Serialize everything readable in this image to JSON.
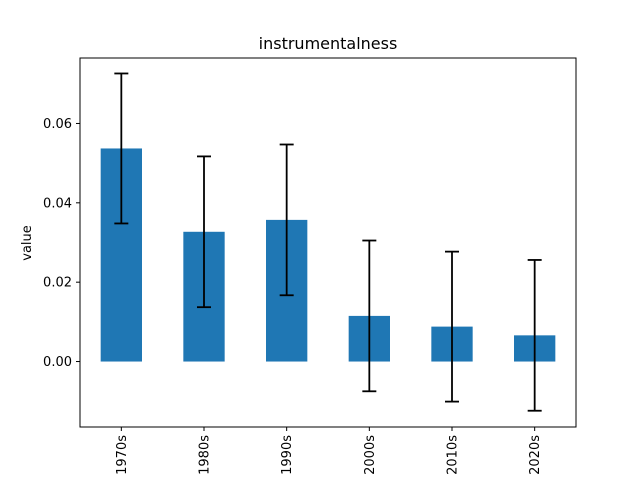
{
  "chart_data": {
    "type": "bar",
    "title": "instrumentalness",
    "xlabel": "",
    "ylabel": "value",
    "categories": [
      "1970s",
      "1980s",
      "1990s",
      "2000s",
      "2010s",
      "2020s"
    ],
    "values": [
      0.0537,
      0.0327,
      0.0357,
      0.0115,
      0.0088,
      0.0066
    ],
    "error": [
      0.0189,
      0.019,
      0.019,
      0.019,
      0.0189,
      0.019
    ],
    "ylim": [
      -0.0165,
      0.0765
    ],
    "yticks": [
      0.0,
      0.02,
      0.04,
      0.06
    ],
    "ytick_labels": [
      "0.00",
      "0.02",
      "0.04",
      "0.06"
    ],
    "grid": false,
    "bar_color": "#1f77b4",
    "error_color": "#000000"
  }
}
